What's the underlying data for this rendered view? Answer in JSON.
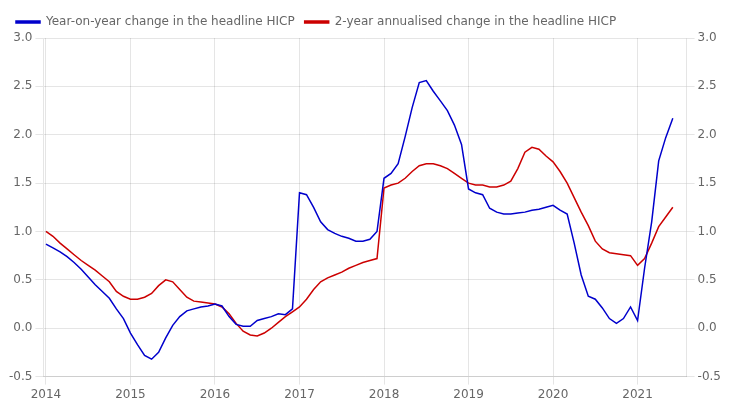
{
  "chart_data": {
    "type": "line",
    "x": [
      2014.0,
      2014.083,
      2014.167,
      2014.25,
      2014.333,
      2014.417,
      2014.5,
      2014.583,
      2014.667,
      2014.75,
      2014.833,
      2014.917,
      2015.0,
      2015.083,
      2015.167,
      2015.25,
      2015.333,
      2015.417,
      2015.5,
      2015.583,
      2015.667,
      2015.75,
      2015.833,
      2015.917,
      2016.0,
      2016.083,
      2016.167,
      2016.25,
      2016.333,
      2016.417,
      2016.5,
      2016.583,
      2016.667,
      2016.75,
      2016.833,
      2016.917,
      2017.0,
      2017.083,
      2017.167,
      2017.25,
      2017.333,
      2017.417,
      2017.5,
      2017.583,
      2017.667,
      2017.75,
      2017.833,
      2017.917,
      2018.0,
      2018.083,
      2018.167,
      2018.25,
      2018.333,
      2018.417,
      2018.5,
      2018.583,
      2018.667,
      2018.75,
      2018.833,
      2018.917,
      2019.0,
      2019.083,
      2019.167,
      2019.25,
      2019.333,
      2019.417,
      2019.5,
      2019.583,
      2019.667,
      2019.75,
      2019.833,
      2019.917,
      2020.0,
      2020.083,
      2020.167,
      2020.25,
      2020.333,
      2020.417,
      2020.5,
      2020.583,
      2020.667,
      2020.75,
      2020.833,
      2020.917,
      2021.0,
      2021.083,
      2021.167,
      2021.25,
      2021.333,
      2021.417
    ],
    "series": [
      {
        "name": "Year-on-year change in the headline HICP",
        "color": "#0000CC",
        "values": [
          0.87,
          0.83,
          0.79,
          0.74,
          0.68,
          0.61,
          0.53,
          0.45,
          0.38,
          0.31,
          0.2,
          0.1,
          -0.05,
          -0.17,
          -0.28,
          -0.32,
          -0.25,
          -0.1,
          0.03,
          0.12,
          0.18,
          0.2,
          0.22,
          0.23,
          0.25,
          0.23,
          0.12,
          0.04,
          0.02,
          0.02,
          0.08,
          0.1,
          0.12,
          0.15,
          0.14,
          0.2,
          1.4,
          1.38,
          1.25,
          1.1,
          1.02,
          0.98,
          0.95,
          0.93,
          0.9,
          0.9,
          0.92,
          1.0,
          1.55,
          1.6,
          1.7,
          1.98,
          2.28,
          2.54,
          2.56,
          2.45,
          2.35,
          2.25,
          2.1,
          1.9,
          1.44,
          1.4,
          1.38,
          1.24,
          1.2,
          1.18,
          1.18,
          1.19,
          1.2,
          1.22,
          1.23,
          1.25,
          1.27,
          1.22,
          1.18,
          0.88,
          0.55,
          0.33,
          0.3,
          0.21,
          0.1,
          0.05,
          0.1,
          0.22,
          0.08,
          0.62,
          1.1,
          1.73,
          1.97,
          2.17
        ]
      },
      {
        "name": "2-year annualised change in the headline HICP",
        "color": "#CC0000",
        "values": [
          1.0,
          0.95,
          0.88,
          0.82,
          0.76,
          0.7,
          0.65,
          0.6,
          0.54,
          0.48,
          0.38,
          0.33,
          0.3,
          0.3,
          0.32,
          0.36,
          0.44,
          0.5,
          0.48,
          0.4,
          0.32,
          0.28,
          0.27,
          0.26,
          0.25,
          0.22,
          0.15,
          0.05,
          -0.03,
          -0.07,
          -0.08,
          -0.05,
          0.0,
          0.06,
          0.12,
          0.17,
          0.22,
          0.3,
          0.4,
          0.48,
          0.52,
          0.55,
          0.58,
          0.62,
          0.65,
          0.68,
          0.7,
          0.72,
          1.45,
          1.48,
          1.5,
          1.55,
          1.62,
          1.68,
          1.7,
          1.7,
          1.68,
          1.65,
          1.6,
          1.55,
          1.5,
          1.48,
          1.48,
          1.46,
          1.46,
          1.48,
          1.52,
          1.65,
          1.82,
          1.87,
          1.85,
          1.78,
          1.72,
          1.62,
          1.5,
          1.35,
          1.2,
          1.06,
          0.9,
          0.82,
          0.78,
          0.77,
          0.76,
          0.75,
          0.65,
          0.72,
          0.88,
          1.05,
          1.15,
          1.25
        ]
      }
    ],
    "xlim": [
      2013.97,
      2021.58
    ],
    "xticks": [
      2014,
      2015,
      2016,
      2017,
      2018,
      2019,
      2020,
      2021
    ],
    "ylim": [
      -0.5,
      3.0
    ],
    "yticks": [
      -0.5,
      {
        "value": 0.0,
        "label": "0.0"
      },
      0.5,
      {
        "value": 1.0,
        "label": "1.0"
      },
      1.5,
      {
        "value": 2.0,
        "label": "2.0"
      },
      2.5,
      {
        "value": 3.0,
        "label": "3.0"
      }
    ],
    "y2lim": [
      -0.5,
      3.0
    ],
    "y2ticks": [
      -0.5,
      {
        "value": 0.0,
        "label": "0.0"
      },
      0.5,
      {
        "value": 1.0,
        "label": "1.0"
      },
      1.5,
      {
        "value": 2.0,
        "label": "2.0"
      },
      2.5,
      {
        "value": 3.0,
        "label": "3.0"
      }
    ],
    "grid": true,
    "legend": "upper left"
  }
}
